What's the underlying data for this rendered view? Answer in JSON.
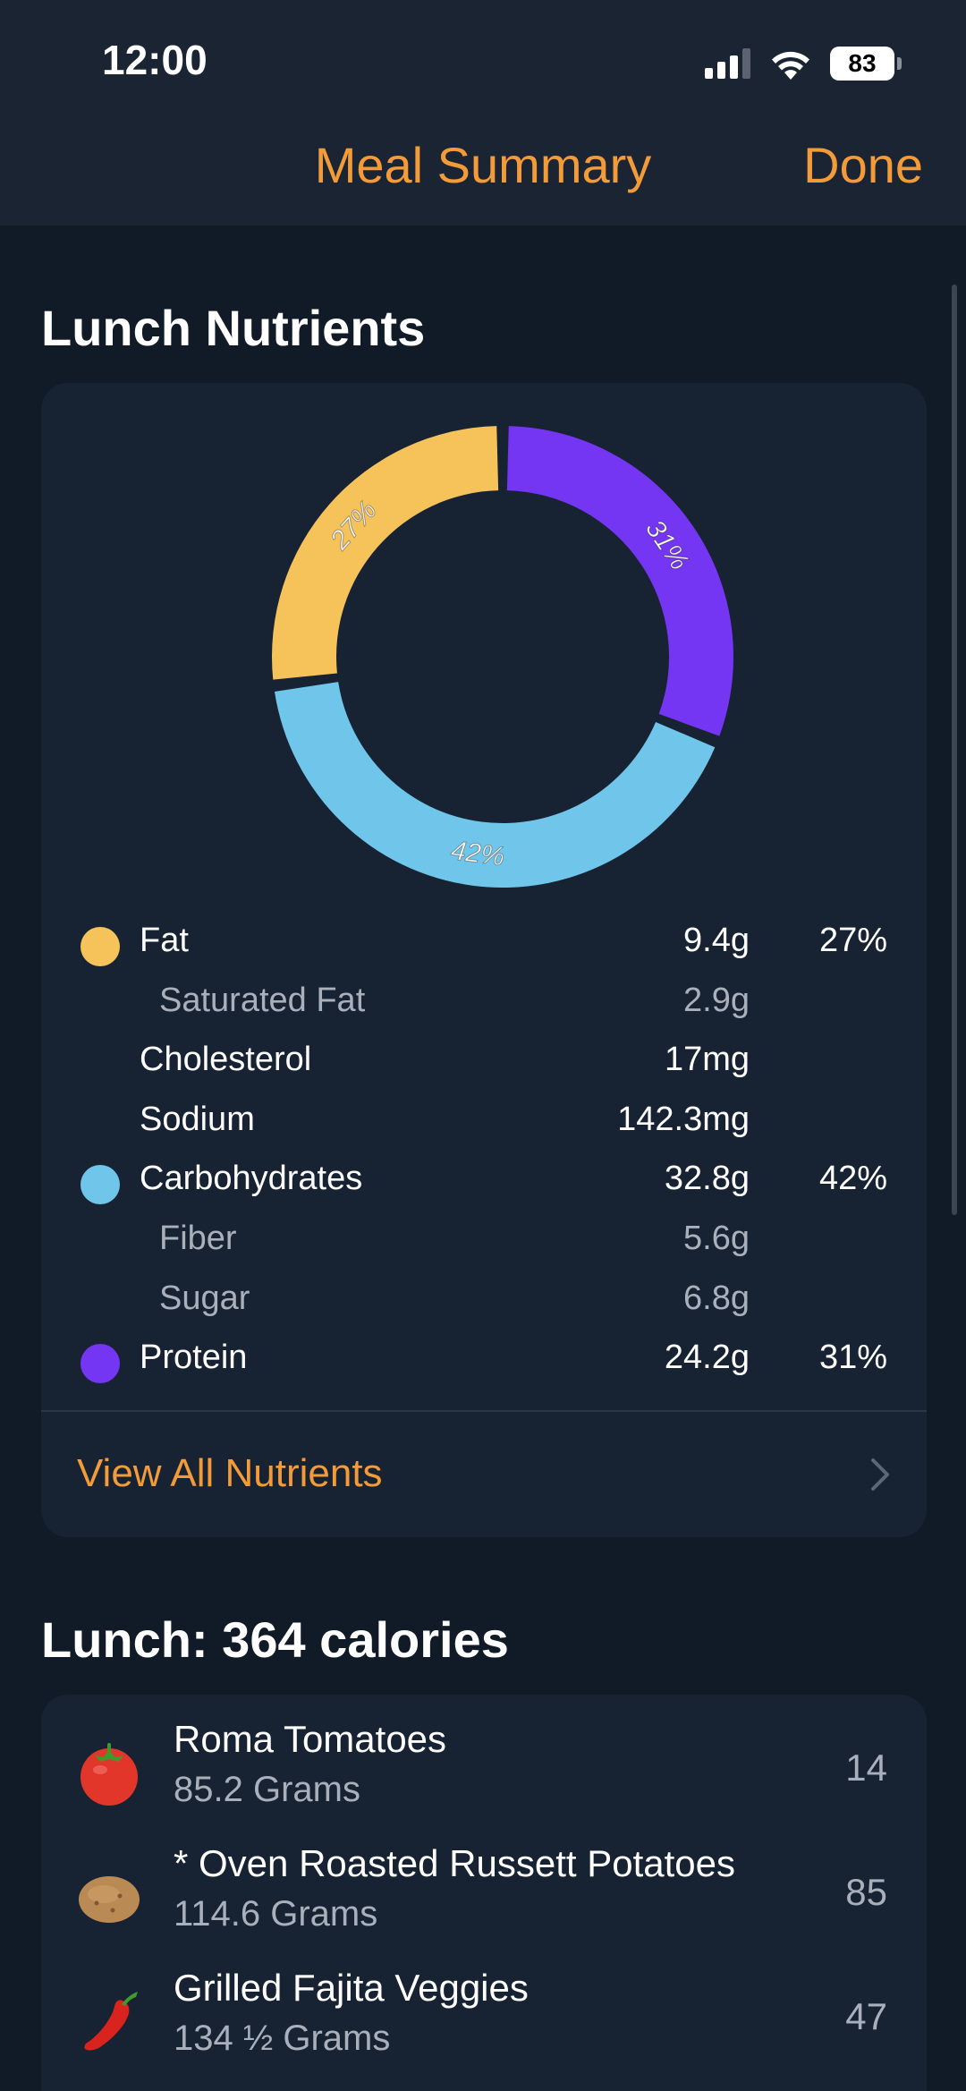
{
  "status_bar": {
    "time": "12:00",
    "battery": "83"
  },
  "nav": {
    "title": "Meal Summary",
    "done_label": "Done"
  },
  "nutrients_section": {
    "title": "Lunch Nutrients",
    "chart_data": {
      "type": "pie",
      "donut": true,
      "categories": [
        "Fat",
        "Carbohydrates",
        "Protein"
      ],
      "values": [
        27,
        42,
        31
      ],
      "labels": [
        "27%",
        "42%",
        "31%"
      ],
      "colors": [
        "#f6c25a",
        "#6fc6ea",
        "#7436f2"
      ]
    },
    "rows": [
      {
        "name": "Fat",
        "amount": "9.4g",
        "percent": "27%",
        "dot_color": "#f6c25a",
        "sub": false
      },
      {
        "name": "Saturated Fat",
        "amount": "2.9g",
        "percent": "",
        "dot_color": "",
        "sub": true
      },
      {
        "name": "Cholesterol",
        "amount": "17mg",
        "percent": "",
        "dot_color": "",
        "sub": false
      },
      {
        "name": "Sodium",
        "amount": "142.3mg",
        "percent": "",
        "dot_color": "",
        "sub": false
      },
      {
        "name": "Carbohydrates",
        "amount": "32.8g",
        "percent": "42%",
        "dot_color": "#6fc6ea",
        "sub": false
      },
      {
        "name": "Fiber",
        "amount": "5.6g",
        "percent": "",
        "dot_color": "",
        "sub": true
      },
      {
        "name": "Sugar",
        "amount": "6.8g",
        "percent": "",
        "dot_color": "",
        "sub": true
      },
      {
        "name": "Protein",
        "amount": "24.2g",
        "percent": "31%",
        "dot_color": "#7436f2",
        "sub": false
      }
    ],
    "view_all_label": "View All Nutrients"
  },
  "meal_section": {
    "title": "Lunch: 364 calories",
    "items": [
      {
        "name": "Roma Tomatoes",
        "quantity": "85.2 Grams",
        "calories": "14",
        "icon": "tomato-icon"
      },
      {
        "name": "* Oven Roasted Russett Potatoes",
        "quantity": "114.6 Grams",
        "calories": "85",
        "icon": "potato-icon"
      },
      {
        "name": "Grilled Fajita Veggies",
        "quantity": "134 ½ Grams",
        "calories": "47",
        "icon": "pepper-icon"
      }
    ]
  },
  "colors": {
    "accent": "#f29b38",
    "background": "#111a27",
    "card": "#172232"
  }
}
